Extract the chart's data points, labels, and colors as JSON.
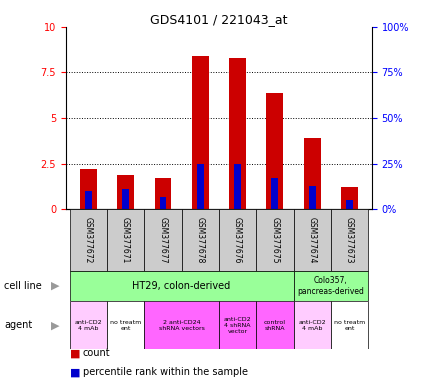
{
  "title": "GDS4101 / 221043_at",
  "samples": [
    "GSM377672",
    "GSM377671",
    "GSM377677",
    "GSM377678",
    "GSM377676",
    "GSM377675",
    "GSM377674",
    "GSM377673"
  ],
  "count_values": [
    2.2,
    1.9,
    1.7,
    8.4,
    8.3,
    6.4,
    3.9,
    1.2
  ],
  "percentile_values": [
    1.0,
    1.1,
    0.7,
    2.5,
    2.5,
    1.7,
    1.3,
    0.5
  ],
  "ylim_left": [
    0,
    10
  ],
  "ylim_right": [
    0,
    100
  ],
  "yticks_left": [
    0,
    2.5,
    5,
    7.5,
    10
  ],
  "yticks_right": [
    0,
    25,
    50,
    75,
    100
  ],
  "count_color": "#cc0000",
  "percentile_color": "#0000cc",
  "sample_box_color": "#cccccc",
  "cell_line_ht29_color": "#99ff99",
  "cell_line_colo_color": "#99ff99",
  "agent_light_pink": "#ffccff",
  "agent_white": "#ffffff",
  "agent_bright_pink": "#ff66ff",
  "agent_row": [
    {
      "label": "anti-CD2\n4 mAb",
      "start": 0,
      "end": 0,
      "color": "#ffccff"
    },
    {
      "label": "no treatm\nent",
      "start": 1,
      "end": 1,
      "color": "#ffffff"
    },
    {
      "label": "2 anti-CD24\nshRNA vectors",
      "start": 2,
      "end": 3,
      "color": "#ff66ff"
    },
    {
      "label": "anti-CD2\n4 shRNA\nvector",
      "start": 4,
      "end": 4,
      "color": "#ff66ff"
    },
    {
      "label": "control\nshRNA",
      "start": 5,
      "end": 5,
      "color": "#ff66ff"
    },
    {
      "label": "anti-CD2\n4 mAb",
      "start": 6,
      "end": 6,
      "color": "#ffccff"
    },
    {
      "label": "no treatm\nent",
      "start": 7,
      "end": 7,
      "color": "#ffffff"
    }
  ]
}
